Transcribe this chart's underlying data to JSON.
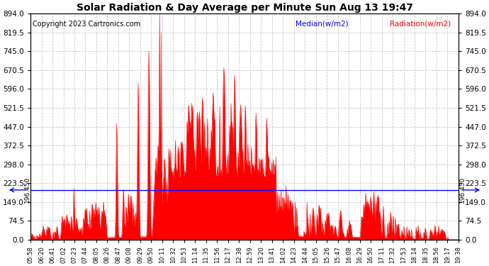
{
  "title": "Solar Radiation & Day Average per Minute Sun Aug 13 19:47",
  "copyright": "Copyright 2023 Cartronics.com",
  "legend_median": "Median(w/m2)",
  "legend_radiation": "Radiation(w/m2)",
  "yticks": [
    0.0,
    74.5,
    149.0,
    223.5,
    298.0,
    372.5,
    447.0,
    521.5,
    596.0,
    670.5,
    745.0,
    819.5,
    894.0
  ],
  "median_value": 196.45,
  "ylim": [
    0,
    894.0
  ],
  "radiation_color": "#FF0000",
  "median_color": "#0000FF",
  "background_color": "#FFFFFF",
  "grid_color": "#BBBBBB",
  "title_color": "#000000",
  "copyright_color": "#000000",
  "legend_median_color": "#0000FF",
  "legend_radiation_color": "#FF0000",
  "xtick_labels": [
    "05:58",
    "06:20",
    "06:41",
    "07:02",
    "07:23",
    "07:44",
    "08:05",
    "08:26",
    "08:47",
    "09:08",
    "09:29",
    "09:50",
    "10:11",
    "10:32",
    "10:53",
    "11:14",
    "11:35",
    "11:56",
    "12:17",
    "12:38",
    "12:59",
    "13:20",
    "13:41",
    "14:02",
    "14:23",
    "14:44",
    "15:05",
    "15:26",
    "15:47",
    "16:08",
    "16:29",
    "16:50",
    "17:11",
    "17:32",
    "17:53",
    "18:14",
    "18:35",
    "18:56",
    "19:17",
    "19:38"
  ],
  "figsize": [
    6.9,
    3.75
  ],
  "dpi": 100
}
